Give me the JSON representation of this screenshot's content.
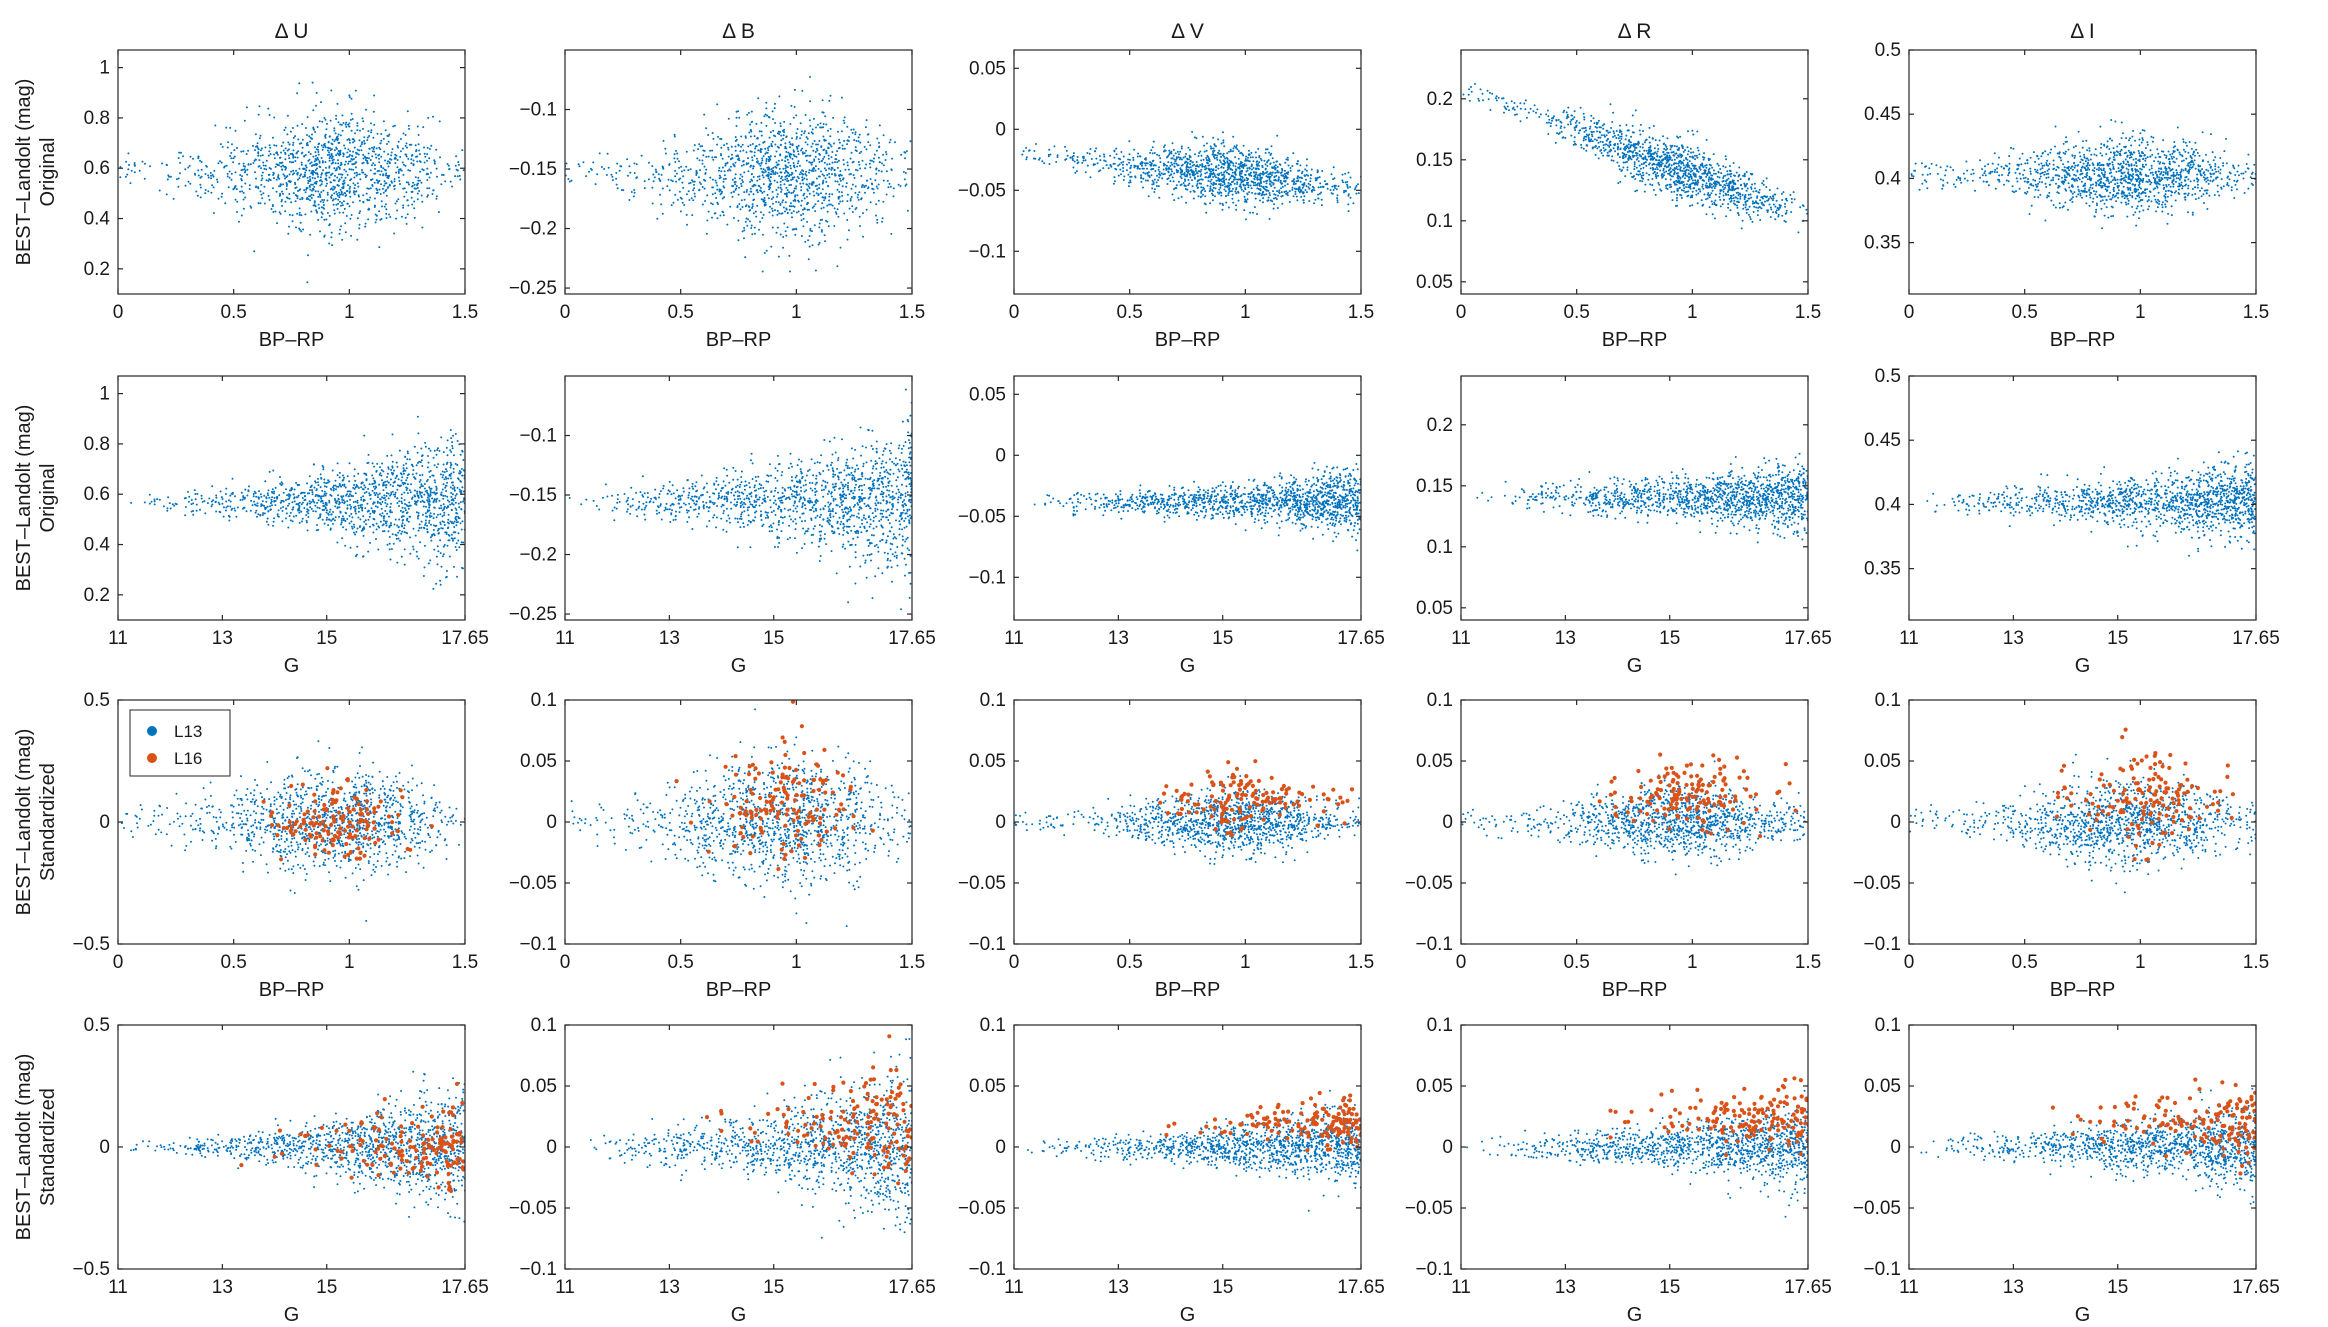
{
  "figure": {
    "columns": [
      "Δ U",
      "Δ B",
      "Δ V",
      "Δ R",
      "Δ I"
    ],
    "row_ylabels": [
      [
        "BEST–Landolt (mag)",
        "Original"
      ],
      [
        "BEST–Landolt (mag)",
        "Original"
      ],
      [
        "BEST–Landolt (mag)",
        "Standardized"
      ],
      [
        "BEST–Landolt (mag)",
        "Standardized"
      ]
    ],
    "row_xlabels": [
      "BP–RP",
      "G",
      "BP–RP",
      "G"
    ],
    "legend": {
      "location": "top-left",
      "panel": "row3-col1",
      "entries": [
        "L13",
        "L16"
      ]
    },
    "colors": {
      "L13": "#0072bd",
      "L16": "#d95319",
      "axis": "#262626"
    }
  },
  "chart_data": [
    {
      "type": "scatter",
      "panel": "row1-col1",
      "title": "Δ U",
      "xlabel": "BP–RP",
      "ylabel": "BEST–Landolt (mag) Original",
      "xlim": [
        0,
        1.5
      ],
      "ylim": [
        0.1,
        1.07
      ],
      "xticks": [
        0,
        0.5,
        1,
        1.5
      ],
      "xticklabels": [
        "0",
        "0.5",
        "1",
        "1.5"
      ],
      "yticks": [
        0.2,
        0.4,
        0.6,
        0.8,
        1
      ],
      "yticklabels": [
        "0.2",
        "0.4",
        "0.6",
        "0.8",
        "1"
      ],
      "series": [
        {
          "name": "L13",
          "x_center": 0.95,
          "x_spread": 0.26,
          "y_center": 0.59,
          "y_spread": 0.12,
          "n": 1300
        }
      ]
    },
    {
      "type": "scatter",
      "panel": "row1-col2",
      "title": "Δ B",
      "xlabel": "BP–RP",
      "ylabel": "",
      "xlim": [
        0,
        1.5
      ],
      "ylim": [
        -0.255,
        -0.05
      ],
      "xticks": [
        0,
        0.5,
        1,
        1.5
      ],
      "xticklabels": [
        "0",
        "0.5",
        "1",
        "1.5"
      ],
      "yticks": [
        -0.25,
        -0.2,
        -0.15,
        -0.1
      ],
      "yticklabels": [
        "−0.25",
        "−0.2",
        "−0.15",
        "−0.1"
      ],
      "series": [
        {
          "name": "L13",
          "x_center": 0.95,
          "x_spread": 0.26,
          "y_center": -0.155,
          "y_spread": 0.028,
          "n": 1300
        }
      ]
    },
    {
      "type": "scatter",
      "panel": "row1-col3",
      "title": "Δ V",
      "xlabel": "BP–RP",
      "ylabel": "",
      "xlim": [
        0,
        1.5
      ],
      "ylim": [
        -0.135,
        0.065
      ],
      "xticks": [
        0,
        0.5,
        1,
        1.5
      ],
      "xticklabels": [
        "0",
        "0.5",
        "1",
        "1.5"
      ],
      "yticks": [
        -0.1,
        -0.05,
        0,
        0.05
      ],
      "yticklabels": [
        "−0.1",
        "−0.05",
        "0",
        "0.05"
      ],
      "series": [
        {
          "name": "L13",
          "x_center": 0.95,
          "x_spread": 0.26,
          "y_center": -0.038,
          "y_spread": 0.012,
          "slope": -0.01,
          "n": 1300
        }
      ]
    },
    {
      "type": "scatter",
      "panel": "row1-col4",
      "title": "Δ R",
      "xlabel": "BP–RP",
      "ylabel": "",
      "xlim": [
        0,
        1.5
      ],
      "ylim": [
        0.04,
        0.24
      ],
      "xticks": [
        0,
        0.5,
        1,
        1.5
      ],
      "xticklabels": [
        "0",
        "0.5",
        "1",
        "1.5"
      ],
      "yticks": [
        0.05,
        0.1,
        0.15,
        0.2
      ],
      "yticklabels": [
        "0.05",
        "0.1",
        "0.15",
        "0.2"
      ],
      "series": [
        {
          "name": "L13",
          "x_center": 0.95,
          "x_spread": 0.26,
          "y_center": 0.142,
          "y_spread": 0.012,
          "slope": -0.035,
          "n": 1300
        }
      ]
    },
    {
      "type": "scatter",
      "panel": "row1-col5",
      "title": "Δ I",
      "xlabel": "BP–RP",
      "ylabel": "",
      "xlim": [
        0,
        1.5
      ],
      "ylim": [
        0.31,
        0.5
      ],
      "xticks": [
        0,
        0.5,
        1,
        1.5
      ],
      "xticklabels": [
        "0",
        "0.5",
        "1",
        "1.5"
      ],
      "yticks": [
        0.35,
        0.4,
        0.45,
        0.5
      ],
      "yticklabels": [
        "0.35",
        "0.4",
        "0.45",
        "0.5"
      ],
      "series": [
        {
          "name": "L13",
          "x_center": 0.95,
          "x_spread": 0.26,
          "y_center": 0.403,
          "y_spread": 0.015,
          "n": 1300
        }
      ]
    },
    {
      "type": "scatter",
      "panel": "row2-col1",
      "title": "",
      "xlabel": "G",
      "ylabel": "BEST–Landolt (mag) Original",
      "xlim": [
        11,
        17.65
      ],
      "ylim": [
        0.1,
        1.07
      ],
      "xticks": [
        11,
        13,
        15,
        17.65
      ],
      "xticklabels": [
        "11",
        "13",
        "15",
        "17.65"
      ],
      "yticks": [
        0.2,
        0.4,
        0.6,
        0.8,
        1
      ],
      "yticklabels": [
        "0.2",
        "0.4",
        "0.6",
        "0.8",
        "1"
      ],
      "series": [
        {
          "name": "L13",
          "y_center": 0.57,
          "y_spread_bright": 0.02,
          "y_spread_faint": 0.14,
          "n": 1300
        }
      ]
    },
    {
      "type": "scatter",
      "panel": "row2-col2",
      "title": "",
      "xlabel": "G",
      "ylabel": "",
      "xlim": [
        11,
        17.65
      ],
      "ylim": [
        -0.255,
        -0.05
      ],
      "xticks": [
        11,
        13,
        15,
        17.65
      ],
      "xticklabels": [
        "11",
        "13",
        "15",
        "17.65"
      ],
      "yticks": [
        -0.25,
        -0.2,
        -0.15,
        -0.1
      ],
      "yticklabels": [
        "−0.25",
        "−0.2",
        "−0.15",
        "−0.1"
      ],
      "series": [
        {
          "name": "L13",
          "y_center": -0.155,
          "y_spread_bright": 0.006,
          "y_spread_faint": 0.032,
          "n": 1300
        }
      ]
    },
    {
      "type": "scatter",
      "panel": "row2-col3",
      "title": "",
      "xlabel": "G",
      "ylabel": "",
      "xlim": [
        11,
        17.65
      ],
      "ylim": [
        -0.135,
        0.065
      ],
      "xticks": [
        11,
        13,
        15,
        17.65
      ],
      "xticklabels": [
        "11",
        "13",
        "15",
        "17.65"
      ],
      "yticks": [
        -0.1,
        -0.05,
        0,
        0.05
      ],
      "yticklabels": [
        "−0.1",
        "−0.05",
        "0",
        "0.05"
      ],
      "series": [
        {
          "name": "L13",
          "y_center": -0.038,
          "y_spread_bright": 0.004,
          "y_spread_faint": 0.013,
          "n": 1300
        }
      ]
    },
    {
      "type": "scatter",
      "panel": "row2-col4",
      "title": "",
      "xlabel": "G",
      "ylabel": "",
      "xlim": [
        11,
        17.65
      ],
      "ylim": [
        0.04,
        0.24
      ],
      "xticks": [
        11,
        13,
        15,
        17.65
      ],
      "xticklabels": [
        "11",
        "13",
        "15",
        "17.65"
      ],
      "yticks": [
        0.05,
        0.1,
        0.15,
        0.2
      ],
      "yticklabels": [
        "0.05",
        "0.1",
        "0.15",
        "0.2"
      ],
      "series": [
        {
          "name": "L13",
          "y_center": 0.14,
          "y_spread_bright": 0.005,
          "y_spread_faint": 0.014,
          "n": 1300
        }
      ]
    },
    {
      "type": "scatter",
      "panel": "row2-col5",
      "title": "",
      "xlabel": "G",
      "ylabel": "",
      "xlim": [
        11,
        17.65
      ],
      "ylim": [
        0.31,
        0.5
      ],
      "xticks": [
        11,
        13,
        15,
        17.65
      ],
      "xticklabels": [
        "11",
        "13",
        "15",
        "17.65"
      ],
      "yticks": [
        0.35,
        0.4,
        0.45,
        0.5
      ],
      "yticklabels": [
        "0.35",
        "0.4",
        "0.45",
        "0.5"
      ],
      "series": [
        {
          "name": "L13",
          "y_center": 0.402,
          "y_spread_bright": 0.005,
          "y_spread_faint": 0.016,
          "n": 1300
        }
      ]
    },
    {
      "type": "scatter",
      "panel": "row3-col1",
      "title": "",
      "xlabel": "BP–RP",
      "ylabel": "BEST–Landolt (mag) Standardized",
      "xlim": [
        0,
        1.5
      ],
      "ylim": [
        -0.5,
        0.5
      ],
      "xticks": [
        0,
        0.5,
        1,
        1.5
      ],
      "xticklabels": [
        "0",
        "0.5",
        "1",
        "1.5"
      ],
      "yticks": [
        -0.5,
        0,
        0.5
      ],
      "yticklabels": [
        "−0.5",
        "0",
        "0.5"
      ],
      "series": [
        {
          "name": "L13",
          "x_center": 0.95,
          "x_spread": 0.26,
          "y_center": 0.0,
          "y_spread": 0.11,
          "n": 1200
        },
        {
          "name": "L16",
          "x_center": 0.95,
          "x_spread": 0.15,
          "y_center": 0.0,
          "y_spread": 0.08,
          "n": 150
        }
      ]
    },
    {
      "type": "scatter",
      "panel": "row3-col2",
      "title": "",
      "xlabel": "BP–RP",
      "ylabel": "",
      "xlim": [
        0,
        1.5
      ],
      "ylim": [
        -0.1,
        0.1
      ],
      "xticks": [
        0,
        0.5,
        1,
        1.5
      ],
      "xticklabels": [
        "0",
        "0.5",
        "1",
        "1.5"
      ],
      "yticks": [
        -0.1,
        -0.05,
        0,
        0.05,
        0.1
      ],
      "yticklabels": [
        "−0.1",
        "−0.05",
        "0",
        "0.05",
        "0.1"
      ],
      "series": [
        {
          "name": "L13",
          "x_center": 0.95,
          "x_spread": 0.26,
          "y_center": 0.0,
          "y_spread": 0.028,
          "n": 1200
        },
        {
          "name": "L16",
          "x_center": 0.95,
          "x_spread": 0.15,
          "y_center": 0.015,
          "y_spread": 0.022,
          "n": 150
        }
      ]
    },
    {
      "type": "scatter",
      "panel": "row3-col3",
      "title": "",
      "xlabel": "BP–RP",
      "ylabel": "",
      "xlim": [
        0,
        1.5
      ],
      "ylim": [
        -0.1,
        0.1
      ],
      "xticks": [
        0,
        0.5,
        1,
        1.5
      ],
      "xticklabels": [
        "0",
        "0.5",
        "1",
        "1.5"
      ],
      "yticks": [
        -0.1,
        -0.05,
        0,
        0.05,
        0.1
      ],
      "yticklabels": [
        "−0.1",
        "−0.05",
        "0",
        "0.05",
        "0.1"
      ],
      "series": [
        {
          "name": "L13",
          "x_center": 0.95,
          "x_spread": 0.26,
          "y_center": 0.0,
          "y_spread": 0.013,
          "n": 1200
        },
        {
          "name": "L16",
          "x_center": 1.0,
          "x_spread": 0.17,
          "y_center": 0.018,
          "y_spread": 0.012,
          "n": 150
        }
      ]
    },
    {
      "type": "scatter",
      "panel": "row3-col4",
      "title": "",
      "xlabel": "BP–RP",
      "ylabel": "",
      "xlim": [
        0,
        1.5
      ],
      "ylim": [
        -0.1,
        0.1
      ],
      "xticks": [
        0,
        0.5,
        1,
        1.5
      ],
      "xticklabels": [
        "0",
        "0.5",
        "1",
        "1.5"
      ],
      "yticks": [
        -0.1,
        -0.05,
        0,
        0.05,
        0.1
      ],
      "yticklabels": [
        "−0.1",
        "−0.05",
        "0",
        "0.05",
        "0.1"
      ],
      "series": [
        {
          "name": "L13",
          "x_center": 0.95,
          "x_spread": 0.26,
          "y_center": 0.0,
          "y_spread": 0.014,
          "n": 1200
        },
        {
          "name": "L16",
          "x_center": 1.0,
          "x_spread": 0.17,
          "y_center": 0.022,
          "y_spread": 0.016,
          "n": 150
        }
      ]
    },
    {
      "type": "scatter",
      "panel": "row3-col5",
      "title": "",
      "xlabel": "BP–RP",
      "ylabel": "",
      "xlim": [
        0,
        1.5
      ],
      "ylim": [
        -0.1,
        0.1
      ],
      "xticks": [
        0,
        0.5,
        1,
        1.5
      ],
      "xticklabels": [
        "0",
        "0.5",
        "1",
        "1.5"
      ],
      "yticks": [
        -0.1,
        -0.05,
        0,
        0.05,
        0.1
      ],
      "yticklabels": [
        "−0.1",
        "−0.05",
        "0",
        "0.05",
        "0.1"
      ],
      "series": [
        {
          "name": "L13",
          "x_center": 0.95,
          "x_spread": 0.26,
          "y_center": 0.0,
          "y_spread": 0.017,
          "n": 1200
        },
        {
          "name": "L16",
          "x_center": 1.0,
          "x_spread": 0.17,
          "y_center": 0.022,
          "y_spread": 0.018,
          "n": 150
        }
      ]
    },
    {
      "type": "scatter",
      "panel": "row4-col1",
      "title": "",
      "xlabel": "G",
      "ylabel": "BEST–Landolt (mag) Standardized",
      "xlim": [
        11,
        17.65
      ],
      "ylim": [
        -0.5,
        0.5
      ],
      "xticks": [
        11,
        13,
        15,
        17.65
      ],
      "xticklabels": [
        "11",
        "13",
        "15",
        "17.65"
      ],
      "yticks": [
        -0.5,
        0,
        0.5
      ],
      "yticklabels": [
        "−0.5",
        "0",
        "0.5"
      ],
      "series": [
        {
          "name": "L13",
          "y_center": 0.0,
          "y_spread_bright": 0.012,
          "y_spread_faint": 0.13,
          "n": 1200
        },
        {
          "name": "L16",
          "y_center": 0.0,
          "y_spread_bright": 0.02,
          "y_spread_faint": 0.1,
          "n": 150
        }
      ]
    },
    {
      "type": "scatter",
      "panel": "row4-col2",
      "title": "",
      "xlabel": "G",
      "ylabel": "",
      "xlim": [
        11,
        17.65
      ],
      "ylim": [
        -0.1,
        0.1
      ],
      "xticks": [
        11,
        13,
        15,
        17.65
      ],
      "xticklabels": [
        "11",
        "13",
        "15",
        "17.65"
      ],
      "yticks": [
        -0.1,
        -0.05,
        0,
        0.05,
        0.1
      ],
      "yticklabels": [
        "−0.1",
        "−0.05",
        "0",
        "0.05",
        "0.1"
      ],
      "series": [
        {
          "name": "L13",
          "y_center": 0.0,
          "y_spread_bright": 0.006,
          "y_spread_faint": 0.032,
          "n": 1200
        },
        {
          "name": "L16",
          "y_center": 0.018,
          "y_spread_bright": 0.006,
          "y_spread_faint": 0.025,
          "n": 150
        }
      ]
    },
    {
      "type": "scatter",
      "panel": "row4-col3",
      "title": "",
      "xlabel": "G",
      "ylabel": "",
      "xlim": [
        11,
        17.65
      ],
      "ylim": [
        -0.1,
        0.1
      ],
      "xticks": [
        11,
        13,
        15,
        17.65
      ],
      "xticklabels": [
        "11",
        "13",
        "15",
        "17.65"
      ],
      "yticks": [
        -0.1,
        -0.05,
        0,
        0.05,
        0.1
      ],
      "yticklabels": [
        "−0.1",
        "−0.05",
        "0",
        "0.05",
        "0.1"
      ],
      "series": [
        {
          "name": "L13",
          "y_center": 0.0,
          "y_spread_bright": 0.004,
          "y_spread_faint": 0.016,
          "n": 1200
        },
        {
          "name": "L16",
          "y_center": 0.018,
          "y_spread_bright": 0.005,
          "y_spread_faint": 0.011,
          "n": 150
        }
      ]
    },
    {
      "type": "scatter",
      "panel": "row4-col4",
      "title": "",
      "xlabel": "G",
      "ylabel": "",
      "xlim": [
        11,
        17.65
      ],
      "ylim": [
        -0.1,
        0.1
      ],
      "xticks": [
        11,
        13,
        15,
        17.65
      ],
      "xticklabels": [
        "11",
        "13",
        "15",
        "17.65"
      ],
      "yticks": [
        -0.1,
        -0.05,
        0,
        0.05,
        0.1
      ],
      "yticklabels": [
        "−0.1",
        "−0.05",
        "0",
        "0.05",
        "0.1"
      ],
      "series": [
        {
          "name": "L13",
          "y_center": 0.0,
          "y_spread_bright": 0.005,
          "y_spread_faint": 0.016,
          "n": 1200
        },
        {
          "name": "L16",
          "y_center": 0.022,
          "y_spread_bright": 0.006,
          "y_spread_faint": 0.015,
          "n": 150
        }
      ]
    },
    {
      "type": "scatter",
      "panel": "row4-col5",
      "title": "",
      "xlabel": "G",
      "ylabel": "",
      "xlim": [
        11,
        17.65
      ],
      "ylim": [
        -0.1,
        0.1
      ],
      "xticks": [
        11,
        13,
        15,
        17.65
      ],
      "xticklabels": [
        "11",
        "13",
        "15",
        "17.65"
      ],
      "yticks": [
        -0.1,
        -0.05,
        0,
        0.05,
        0.1
      ],
      "yticklabels": [
        "−0.1",
        "−0.05",
        "0",
        "0.05",
        "0.1"
      ],
      "series": [
        {
          "name": "L13",
          "y_center": 0.0,
          "y_spread_bright": 0.005,
          "y_spread_faint": 0.018,
          "n": 1200
        },
        {
          "name": "L16",
          "y_center": 0.022,
          "y_spread_bright": 0.006,
          "y_spread_faint": 0.017,
          "n": 150
        }
      ]
    }
  ]
}
